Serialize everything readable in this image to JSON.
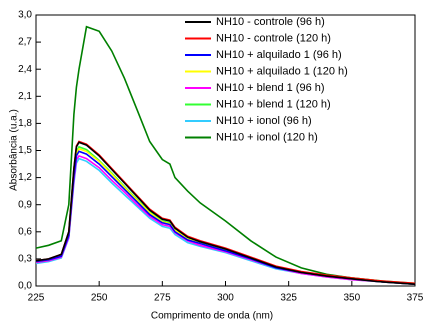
{
  "chart_data": {
    "type": "line",
    "xlabel": "Comprimento de onda (nm)",
    "ylabel": "Absorbância (u.a.)",
    "x": [
      225,
      230,
      235,
      238,
      240,
      241,
      242,
      245,
      250,
      255,
      260,
      265,
      270,
      275,
      278,
      280,
      285,
      290,
      300,
      310,
      320,
      330,
      340,
      350,
      360,
      370,
      375
    ],
    "xlim": [
      225,
      375
    ],
    "xticks": [
      225,
      250,
      275,
      300,
      325,
      350,
      375
    ],
    "ylim": [
      0,
      3
    ],
    "yticks": [
      {
        "value": 0,
        "label": "0,0"
      },
      {
        "value": 0.3,
        "label": "0,3"
      },
      {
        "value": 0.6,
        "label": "0,6"
      },
      {
        "value": 0.9,
        "label": "0,9"
      },
      {
        "value": 1.2,
        "label": "1,2"
      },
      {
        "value": 1.5,
        "label": "1,5"
      },
      {
        "value": 1.8,
        "label": "1,8"
      },
      {
        "value": 2.1,
        "label": "2,1"
      },
      {
        "value": 2.4,
        "label": "2,4"
      },
      {
        "value": 2.7,
        "label": "2,7"
      },
      {
        "value": 3,
        "label": "3,0"
      }
    ],
    "legend": "upper right",
    "series": [
      {
        "name": "NH10 - controle (96 h)",
        "color": "#000000",
        "values": [
          0.28,
          0.3,
          0.35,
          0.6,
          1.3,
          1.54,
          1.59,
          1.56,
          1.44,
          1.29,
          1.14,
          0.99,
          0.84,
          0.74,
          0.72,
          0.64,
          0.54,
          0.49,
          0.41,
          0.31,
          0.21,
          0.15,
          0.11,
          0.08,
          0.05,
          0.03,
          0.02
        ]
      },
      {
        "name": "NH10 - controle (120 h)",
        "color": "#ff0000",
        "values": [
          0.28,
          0.3,
          0.35,
          0.6,
          1.3,
          1.55,
          1.6,
          1.57,
          1.45,
          1.3,
          1.15,
          1.0,
          0.85,
          0.75,
          0.73,
          0.65,
          0.55,
          0.5,
          0.42,
          0.32,
          0.22,
          0.16,
          0.12,
          0.09,
          0.06,
          0.04,
          0.03
        ]
      },
      {
        "name": "NH10 + alquilado 1 (96 h)",
        "color": "#0000ff",
        "values": [
          0.27,
          0.29,
          0.33,
          0.56,
          1.21,
          1.44,
          1.49,
          1.46,
          1.35,
          1.21,
          1.07,
          0.93,
          0.79,
          0.7,
          0.68,
          0.6,
          0.51,
          0.47,
          0.39,
          0.3,
          0.2,
          0.15,
          0.11,
          0.08,
          0.05,
          0.03,
          0.02
        ]
      },
      {
        "name": "NH10 + alquilado 1 (120 h)",
        "color": "#ffff00",
        "values": [
          0.27,
          0.29,
          0.34,
          0.57,
          1.24,
          1.47,
          1.52,
          1.49,
          1.38,
          1.24,
          1.09,
          0.95,
          0.81,
          0.71,
          0.69,
          0.62,
          0.52,
          0.47,
          0.4,
          0.3,
          0.21,
          0.15,
          0.11,
          0.08,
          0.05,
          0.03,
          0.02
        ]
      },
      {
        "name": "NH10 + blend 1 (96 h)",
        "color": "#ff00ff",
        "values": [
          0.26,
          0.28,
          0.32,
          0.54,
          1.17,
          1.4,
          1.44,
          1.41,
          1.31,
          1.17,
          1.04,
          0.9,
          0.77,
          0.68,
          0.66,
          0.59,
          0.5,
          0.45,
          0.38,
          0.29,
          0.2,
          0.14,
          0.1,
          0.07,
          0.05,
          0.03,
          0.02
        ]
      },
      {
        "name": "NH10 + blend 1 (120 h)",
        "color": "#33ff33",
        "values": [
          0.27,
          0.29,
          0.34,
          0.58,
          1.25,
          1.49,
          1.54,
          1.51,
          1.39,
          1.25,
          1.1,
          0.96,
          0.82,
          0.72,
          0.7,
          0.62,
          0.53,
          0.48,
          0.4,
          0.31,
          0.21,
          0.15,
          0.12,
          0.09,
          0.06,
          0.04,
          0.03
        ]
      },
      {
        "name": "NH10 + ionol (96 h)",
        "color": "#33ccff",
        "values": [
          0.25,
          0.27,
          0.31,
          0.53,
          1.14,
          1.36,
          1.41,
          1.38,
          1.28,
          1.14,
          1.01,
          0.88,
          0.75,
          0.66,
          0.64,
          0.57,
          0.48,
          0.44,
          0.37,
          0.28,
          0.19,
          0.14,
          0.1,
          0.07,
          0.05,
          0.03,
          0.02
        ]
      },
      {
        "name": "NH10 + ionol (120 h)",
        "color": "#008000",
        "values": [
          0.42,
          0.45,
          0.5,
          0.9,
          1.9,
          2.2,
          2.4,
          2.87,
          2.82,
          2.6,
          2.3,
          1.95,
          1.6,
          1.4,
          1.35,
          1.2,
          1.05,
          0.92,
          0.72,
          0.5,
          0.32,
          0.2,
          0.13,
          0.09,
          0.06,
          0.03,
          0.02
        ]
      }
    ]
  }
}
